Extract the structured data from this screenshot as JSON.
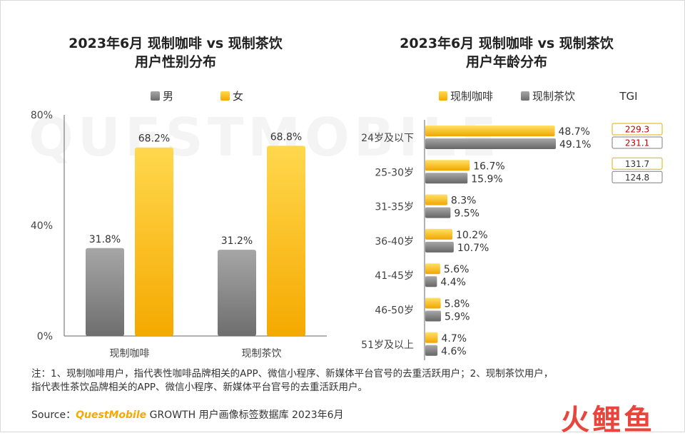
{
  "watermark": "QUESTMOBILE",
  "left_chart": {
    "title_line1": "2023年6月 现制咖啡 vs 现制茶饮",
    "title_line2": "用户性别分布",
    "legend": [
      "男",
      "女"
    ]
  },
  "right_chart": {
    "title_line1": "2023年6月 现制咖啡 vs 现制茶饮",
    "title_line2": "用户年龄分布",
    "legend": [
      "现制咖啡",
      "现制茶饮"
    ],
    "tgi_header": "TGI"
  },
  "chart_data": [
    {
      "type": "bar",
      "title": "2023年6月 现制咖啡 vs 现制茶饮 用户性别分布",
      "categories": [
        "现制咖啡",
        "现制茶饮"
      ],
      "series": [
        {
          "name": "男",
          "values": [
            31.8,
            31.2
          ],
          "labels": [
            "31.8%",
            "31.2%"
          ],
          "color": "#8c8c8c"
        },
        {
          "name": "女",
          "values": [
            68.2,
            68.8
          ],
          "labels": [
            "68.2%",
            "68.8%"
          ],
          "color": "#ffc000"
        }
      ],
      "ylim": [
        0,
        80
      ],
      "yticks": [
        "0%",
        "40%",
        "80%"
      ],
      "legend_position": "top"
    },
    {
      "type": "bar",
      "orientation": "horizontal",
      "title": "2023年6月 现制咖啡 vs 现制茶饮 用户年龄分布",
      "categories": [
        "24岁及以下",
        "25-30岁",
        "31-35岁",
        "36-40岁",
        "41-45岁",
        "46-50岁",
        "51岁及以上"
      ],
      "series": [
        {
          "name": "现制咖啡",
          "values": [
            48.7,
            16.7,
            8.3,
            10.2,
            5.6,
            5.8,
            4.7
          ],
          "labels": [
            "48.7%",
            "16.7%",
            "8.3%",
            "10.2%",
            "5.6%",
            "5.8%",
            "4.7%"
          ],
          "color": "#ffc000"
        },
        {
          "name": "现制茶饮",
          "values": [
            49.1,
            15.9,
            9.5,
            10.7,
            4.4,
            5.9,
            4.6
          ],
          "labels": [
            "49.1%",
            "15.9%",
            "9.5%",
            "10.7%",
            "4.4%",
            "5.9%",
            "4.6%"
          ],
          "color": "#8c8c8c"
        }
      ],
      "tgi": [
        {
          "coffee": "229.3",
          "tea": "231.1"
        },
        {
          "coffee": "131.7",
          "tea": "124.8"
        }
      ],
      "legend_position": "top"
    }
  ],
  "note": {
    "line1": "注：1、现制咖啡用户，指代表性咖啡品牌相关的APP、微信小程序、新媒体平台官号的去重活跃用户；2、现制茶饮用户，",
    "line2": "指代表性茶饮品牌相关的APP、微信小程序、新媒体平台官号的去重活跃用户。"
  },
  "source": {
    "prefix": "Source：",
    "brand": "QuestMobile",
    "text": " GROWTH 用户画像标签数据库 2023年6月"
  },
  "logo": "火鲤鱼"
}
